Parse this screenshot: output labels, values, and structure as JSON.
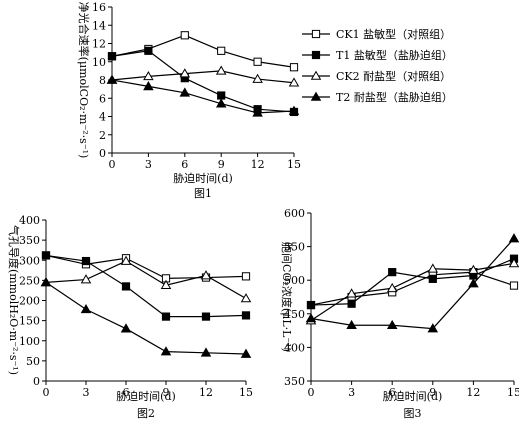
{
  "chart_data": [
    {
      "type": "line",
      "caption": "图1",
      "xlabel": "胁迫时间(d)",
      "ylabel": "净光合速率(μmolCO₂·m⁻²·s⁻¹)",
      "x": [
        0,
        3,
        6,
        9,
        12,
        15
      ],
      "xlim": [
        0,
        15
      ],
      "ylim": [
        0,
        16
      ],
      "yticks": [
        0,
        2,
        4,
        6,
        8,
        10,
        12,
        14,
        16
      ],
      "legend_position": "right",
      "series": [
        {
          "name": "CK1 盐敏型（对照组）",
          "marker": "square-open",
          "values": [
            10.6,
            11.4,
            12.9,
            11.2,
            10.0,
            9.4
          ]
        },
        {
          "name": "T1 盐敏型（盐胁迫组）",
          "marker": "square-filled",
          "values": [
            10.6,
            11.2,
            8.2,
            6.3,
            4.8,
            4.5
          ]
        },
        {
          "name": "CK2 耐盐型（对照组）",
          "marker": "triangle-open",
          "values": [
            8.0,
            8.4,
            8.7,
            9.0,
            8.1,
            7.7
          ]
        },
        {
          "name": "T2 耐盐型（盐胁迫组）",
          "marker": "triangle-filled",
          "values": [
            8.0,
            7.3,
            6.6,
            5.4,
            4.4,
            4.6
          ]
        }
      ]
    },
    {
      "type": "line",
      "caption": "图2",
      "xlabel": "胁迫时间(d)",
      "ylabel": "气孔导度(mmolH₂O·m⁻²·s⁻¹)",
      "x": [
        0,
        3,
        6,
        9,
        12,
        15
      ],
      "xlim": [
        0,
        15
      ],
      "ylim": [
        0,
        400
      ],
      "yticks": [
        0,
        50,
        100,
        150,
        200,
        250,
        300,
        350,
        400
      ],
      "series": [
        {
          "marker": "square-open",
          "values": [
            312,
            290,
            305,
            255,
            257,
            260
          ]
        },
        {
          "marker": "square-filled",
          "values": [
            312,
            298,
            235,
            160,
            160,
            163
          ]
        },
        {
          "marker": "triangle-open",
          "values": [
            245,
            252,
            298,
            238,
            262,
            205
          ]
        },
        {
          "marker": "triangle-filled",
          "values": [
            245,
            178,
            130,
            73,
            70,
            67
          ]
        }
      ]
    },
    {
      "type": "line",
      "caption": "图3",
      "xlabel": "胁迫时间(d)",
      "ylabel": "胞间CO₂浓度(μL·L⁻¹)",
      "x": [
        0,
        3,
        6,
        9,
        12,
        15
      ],
      "xlim": [
        0,
        15
      ],
      "ylim": [
        350,
        600
      ],
      "yticks": [
        350,
        400,
        450,
        500,
        550,
        600
      ],
      "series": [
        {
          "marker": "square-open",
          "values": [
            463,
            475,
            482,
            508,
            512,
            492
          ]
        },
        {
          "marker": "square-filled",
          "values": [
            463,
            465,
            512,
            502,
            507,
            532
          ]
        },
        {
          "marker": "triangle-open",
          "values": [
            440,
            480,
            488,
            517,
            515,
            525
          ]
        },
        {
          "marker": "triangle-filled",
          "values": [
            443,
            433,
            433,
            428,
            495,
            562
          ]
        }
      ]
    }
  ]
}
